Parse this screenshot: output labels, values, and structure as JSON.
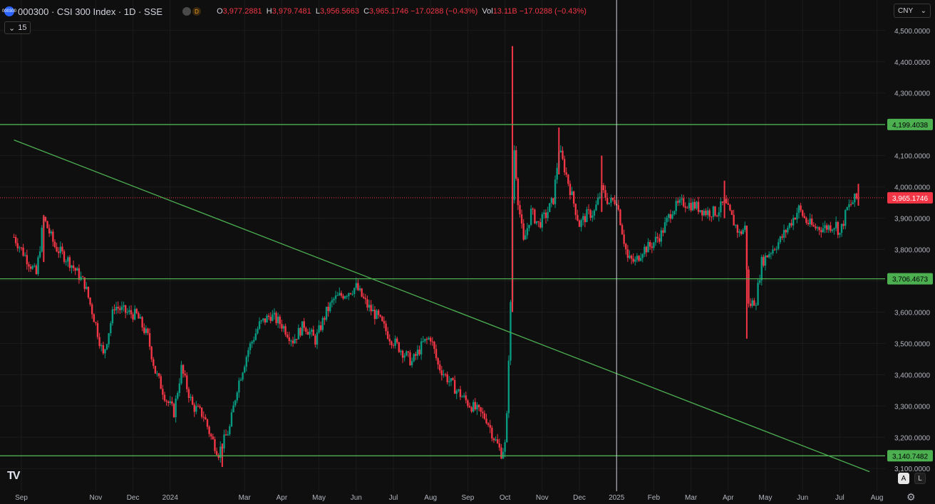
{
  "header": {
    "symbol_badge": "000300",
    "title": "000300 · CSI 300 Index · 1D · SSE",
    "dot2": "D",
    "ohlc": [
      {
        "k": "O",
        "v": "3,977.2881"
      },
      {
        "k": "H",
        "v": "3,979.7481"
      },
      {
        "k": "L",
        "v": "3,956.5663"
      },
      {
        "k": "C",
        "v": "3,965.1746 −17.0288 (−0.43%)"
      },
      {
        "k": "Vol",
        "v": "13.11B −17.0288 (−0.43%)"
      }
    ]
  },
  "indicator_toggle": {
    "chevron": "⌄",
    "label": "15"
  },
  "currency": {
    "value": "CNY",
    "chevron": "⌄"
  },
  "buttons": {
    "auto": "A",
    "log": "L"
  },
  "icons": {
    "gear": "settings-gear",
    "logo": "tradingview-logo"
  },
  "logo_text": "TV",
  "colors": {
    "background": "#0f0f0f",
    "grid": "#1c1c1c",
    "up": "#089981",
    "down": "#f23645",
    "level": "#4caf50",
    "level_label_bg": "#4caf50",
    "price_label_bg": "#f23645",
    "crosshair": "#d1d4dc",
    "axis_text": "#b2b5be"
  },
  "chart_data": {
    "type": "candlestick",
    "ylim": [
      3060,
      4520
    ],
    "y_ticks": [
      3100,
      3200,
      3300,
      3400,
      3500,
      3600,
      3700,
      3800,
      3900,
      4000,
      4100,
      4200,
      4300,
      4400,
      4500
    ],
    "y_tick_labels": [
      "3,100.0000",
      "3,200.0000",
      "3,300.0000",
      "3,400.0000",
      "3,500.0000",
      "3,600.0000",
      "3,700.0000",
      "3,800.0000",
      "3,900.0000",
      "4,000.0000",
      "4,100.0000",
      "4,200.0000",
      "4,300.0000",
      "4,400.0000",
      "4,500.0000"
    ],
    "x_labels": [
      {
        "t": "Sep",
        "m": 0
      },
      {
        "t": "Nov",
        "m": 2
      },
      {
        "t": "Dec",
        "m": 3
      },
      {
        "t": "2024",
        "m": 4
      },
      {
        "t": "Mar",
        "m": 6
      },
      {
        "t": "Apr",
        "m": 7
      },
      {
        "t": "May",
        "m": 8
      },
      {
        "t": "Jun",
        "m": 9
      },
      {
        "t": "Jul",
        "m": 10
      },
      {
        "t": "Aug",
        "m": 11
      },
      {
        "t": "Sep",
        "m": 12
      },
      {
        "t": "Oct",
        "m": 13
      },
      {
        "t": "Nov",
        "m": 14
      },
      {
        "t": "Dec",
        "m": 15
      },
      {
        "t": "2025",
        "m": 16
      },
      {
        "t": "Feb",
        "m": 17
      },
      {
        "t": "Mar",
        "m": 18
      },
      {
        "t": "Apr",
        "m": 19
      },
      {
        "t": "May",
        "m": 20
      },
      {
        "t": "Jun",
        "m": 21
      },
      {
        "t": "Jul",
        "m": 22
      },
      {
        "t": "Aug",
        "m": 23
      }
    ],
    "horizontal_levels": [
      {
        "value": 4199.4038,
        "label": "4,199.4038"
      },
      {
        "value": 3706.4673,
        "label": "3,706.4673"
      },
      {
        "value": 3140.7482,
        "label": "3,140.7482"
      }
    ],
    "last_price": {
      "value": 3965.1746,
      "label": "3,965.1746"
    },
    "trendline": {
      "from": {
        "m": -0.2,
        "y": 4150
      },
      "to": {
        "m": 22.8,
        "y": 3090
      }
    },
    "crosshair_m": 16.0,
    "path_keypoints": [
      [
        -0.2,
        3840
      ],
      [
        0.1,
        3780
      ],
      [
        0.4,
        3720
      ],
      [
        0.6,
        3900
      ],
      [
        0.9,
        3810
      ],
      [
        1.3,
        3760
      ],
      [
        1.7,
        3690
      ],
      [
        2.0,
        3560
      ],
      [
        2.2,
        3460
      ],
      [
        2.5,
        3620
      ],
      [
        2.8,
        3600
      ],
      [
        3.1,
        3590
      ],
      [
        3.4,
        3520
      ],
      [
        3.6,
        3410
      ],
      [
        3.9,
        3320
      ],
      [
        4.1,
        3280
      ],
      [
        4.3,
        3420
      ],
      [
        4.6,
        3300
      ],
      [
        4.9,
        3270
      ],
      [
        5.1,
        3200
      ],
      [
        5.3,
        3150
      ],
      [
        5.6,
        3230
      ],
      [
        5.8,
        3360
      ],
      [
        6.1,
        3480
      ],
      [
        6.4,
        3560
      ],
      [
        6.7,
        3590
      ],
      [
        7.0,
        3560
      ],
      [
        7.3,
        3510
      ],
      [
        7.6,
        3560
      ],
      [
        7.9,
        3510
      ],
      [
        8.2,
        3600
      ],
      [
        8.4,
        3640
      ],
      [
        8.7,
        3660
      ],
      [
        9.0,
        3680
      ],
      [
        9.3,
        3620
      ],
      [
        9.6,
        3580
      ],
      [
        9.9,
        3520
      ],
      [
        10.2,
        3480
      ],
      [
        10.5,
        3440
      ],
      [
        10.8,
        3500
      ],
      [
        11.0,
        3520
      ],
      [
        11.2,
        3430
      ],
      [
        11.5,
        3380
      ],
      [
        11.7,
        3350
      ],
      [
        12.0,
        3310
      ],
      [
        12.2,
        3290
      ],
      [
        12.5,
        3260
      ],
      [
        12.7,
        3200
      ],
      [
        12.9,
        3150
      ],
      [
        13.0,
        3175
      ],
      [
        13.06,
        3280
      ],
      [
        13.1,
        3460
      ],
      [
        13.15,
        3620
      ],
      [
        13.2,
        3960
      ],
      [
        13.25,
        4120
      ],
      [
        13.35,
        3960
      ],
      [
        13.5,
        3820
      ],
      [
        13.7,
        3920
      ],
      [
        13.9,
        3880
      ],
      [
        14.1,
        3910
      ],
      [
        14.3,
        3960
      ],
      [
        14.45,
        4120
      ],
      [
        14.6,
        4060
      ],
      [
        14.8,
        3970
      ],
      [
        15.0,
        3880
      ],
      [
        15.2,
        3910
      ],
      [
        15.4,
        3920
      ],
      [
        15.6,
        3990
      ],
      [
        15.8,
        3950
      ],
      [
        16.0,
        3960
      ],
      [
        16.15,
        3860
      ],
      [
        16.3,
        3770
      ],
      [
        16.5,
        3760
      ],
      [
        16.7,
        3800
      ],
      [
        16.9,
        3810
      ],
      [
        17.2,
        3850
      ],
      [
        17.5,
        3930
      ],
      [
        17.8,
        3950
      ],
      [
        18.1,
        3940
      ],
      [
        18.4,
        3920
      ],
      [
        18.7,
        3920
      ],
      [
        18.9,
        3950
      ],
      [
        19.1,
        3900
      ],
      [
        19.3,
        3850
      ],
      [
        19.45,
        3870
      ],
      [
        19.55,
        3620
      ],
      [
        19.75,
        3640
      ],
      [
        19.9,
        3760
      ],
      [
        20.1,
        3790
      ],
      [
        20.4,
        3830
      ],
      [
        20.6,
        3870
      ],
      [
        20.9,
        3930
      ],
      [
        21.1,
        3890
      ],
      [
        21.3,
        3870
      ],
      [
        21.6,
        3870
      ],
      [
        21.9,
        3880
      ],
      [
        22.0,
        3850
      ],
      [
        22.2,
        3930
      ],
      [
        22.4,
        3960
      ],
      [
        22.55,
        3965
      ]
    ],
    "notable_wicks": [
      {
        "m": 0.6,
        "high": 3910,
        "low": 3760
      },
      {
        "m": 5.4,
        "high": 3180,
        "low": 3105
      },
      {
        "m": 13.2,
        "high": 4450,
        "low": 3600
      },
      {
        "m": 14.45,
        "high": 4190,
        "low": 4040
      },
      {
        "m": 15.6,
        "high": 4100,
        "low": 3920
      },
      {
        "m": 18.9,
        "high": 4020,
        "low": 3900
      },
      {
        "m": 19.5,
        "high": 3870,
        "low": 3515
      },
      {
        "m": 22.5,
        "high": 4010,
        "low": 3940
      }
    ]
  }
}
